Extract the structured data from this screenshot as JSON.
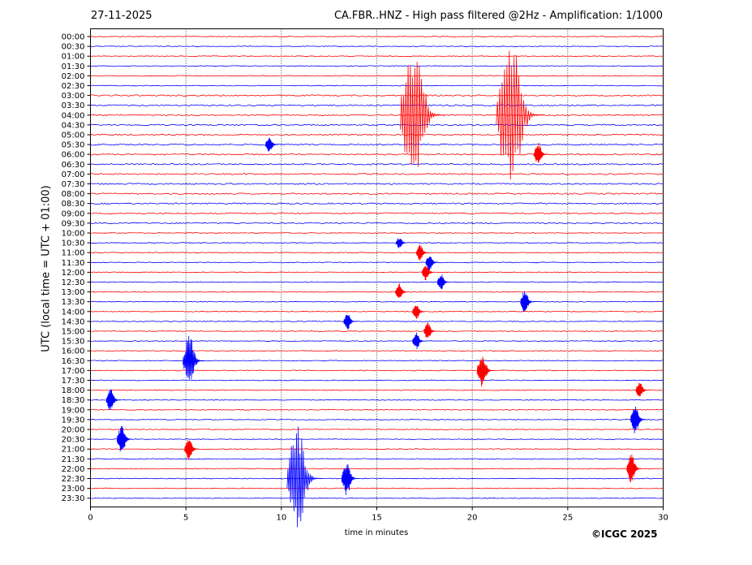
{
  "header": {
    "date": "27-11-2025",
    "title": "CA.FBR..HNZ - High pass filtered @2Hz - Amplification: 1/1000"
  },
  "footer": {
    "copyright": "©ICGC 2025"
  },
  "chart_data": {
    "type": "line",
    "title": "CA.FBR..HNZ - High pass filtered @2Hz - Amplification: 1/1000",
    "xlabel": "time in minutes",
    "ylabel": "UTC (local time = UTC + 01:00)",
    "xlim": [
      0,
      30
    ],
    "xticks": [
      0,
      5,
      10,
      15,
      20,
      25,
      30
    ],
    "grid": "vertical dotted at x ticks",
    "colors": {
      "odd_trace": "#ff0000",
      "even_trace": "#0000ff"
    },
    "rows": [
      "00:00",
      "00:30",
      "01:00",
      "01:30",
      "02:00",
      "02:30",
      "03:00",
      "03:30",
      "04:00",
      "04:30",
      "05:00",
      "05:30",
      "06:00",
      "06:30",
      "07:00",
      "07:30",
      "08:00",
      "08:30",
      "09:00",
      "09:30",
      "10:00",
      "10:30",
      "11:00",
      "11:30",
      "12:00",
      "12:30",
      "13:00",
      "13:30",
      "14:00",
      "14:30",
      "15:00",
      "15:30",
      "16:00",
      "16:30",
      "17:00",
      "17:30",
      "18:00",
      "18:30",
      "19:00",
      "19:30",
      "20:00",
      "20:30",
      "21:00",
      "21:30",
      "22:00",
      "22:30",
      "23:00",
      "23:30"
    ],
    "events": [
      {
        "row": "04:00",
        "x": 17.4,
        "amp": 2.5
      },
      {
        "row": "04:00",
        "x": 22.5,
        "amp": 2.7
      },
      {
        "row": "05:30",
        "x": 9.5,
        "amp": 0.3
      },
      {
        "row": "06:00",
        "x": 23.6,
        "amp": 0.4
      },
      {
        "row": "10:30",
        "x": 16.3,
        "amp": 0.2
      },
      {
        "row": "11:00",
        "x": 17.4,
        "amp": 0.3
      },
      {
        "row": "11:30",
        "x": 17.9,
        "amp": 0.3
      },
      {
        "row": "12:00",
        "x": 17.7,
        "amp": 0.3
      },
      {
        "row": "12:30",
        "x": 18.5,
        "amp": 0.3
      },
      {
        "row": "13:00",
        "x": 16.3,
        "amp": 0.3
      },
      {
        "row": "13:30",
        "x": 22.9,
        "amp": 0.4
      },
      {
        "row": "14:00",
        "x": 17.2,
        "amp": 0.3
      },
      {
        "row": "14:30",
        "x": 13.6,
        "amp": 0.3
      },
      {
        "row": "15:00",
        "x": 17.8,
        "amp": 0.3
      },
      {
        "row": "15:30",
        "x": 17.2,
        "amp": 0.3
      },
      {
        "row": "16:30",
        "x": 5.4,
        "amp": 0.9
      },
      {
        "row": "17:00",
        "x": 20.7,
        "amp": 0.6
      },
      {
        "row": "18:00",
        "x": 28.9,
        "amp": 0.3
      },
      {
        "row": "18:30",
        "x": 1.2,
        "amp": 0.4
      },
      {
        "row": "19:30",
        "x": 28.7,
        "amp": 0.5
      },
      {
        "row": "20:30",
        "x": 1.8,
        "amp": 0.5
      },
      {
        "row": "21:00",
        "x": 5.3,
        "amp": 0.4
      },
      {
        "row": "22:00",
        "x": 28.5,
        "amp": 0.5
      },
      {
        "row": "22:30",
        "x": 11.2,
        "amp": 1.8
      },
      {
        "row": "22:30",
        "x": 13.6,
        "amp": 0.6
      }
    ]
  }
}
